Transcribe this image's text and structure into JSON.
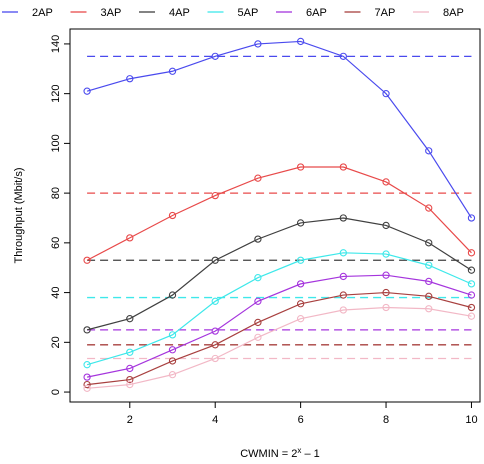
{
  "chart_data": {
    "type": "line",
    "xlabel_base": "CWMIN = 2",
    "xlabel_exp": "x",
    "xlabel_tail": " – 1",
    "ylabel": "Throughput (Mbit/s)",
    "x": [
      1,
      2,
      3,
      4,
      5,
      6,
      7,
      8,
      9,
      10
    ],
    "xlim": [
      0.6,
      10.2
    ],
    "ylim": [
      -4,
      146
    ],
    "x_ticks": [
      2,
      4,
      6,
      8,
      10
    ],
    "y_ticks": [
      0,
      20,
      40,
      60,
      80,
      100,
      120,
      140
    ],
    "grid": false,
    "legend_position": "top",
    "series": [
      {
        "name": "2AP",
        "color": "#4a4aee",
        "values": [
          121,
          126,
          129,
          135,
          140,
          141,
          135,
          120,
          97,
          70
        ],
        "reference": 135
      },
      {
        "name": "3AP",
        "color": "#e84a4a",
        "values": [
          53,
          62,
          71,
          79,
          86,
          90.5,
          90.5,
          84.5,
          74,
          56
        ],
        "reference": 80
      },
      {
        "name": "4AP",
        "color": "#404040",
        "values": [
          25,
          29.5,
          39,
          53,
          61.5,
          68,
          70,
          67,
          60,
          49
        ],
        "reference": 53
      },
      {
        "name": "5AP",
        "color": "#3ee8ea",
        "values": [
          11,
          16,
          23,
          36.5,
          46,
          53,
          56,
          55.5,
          51,
          43.5
        ],
        "reference": 38
      },
      {
        "name": "6AP",
        "color": "#a535dd",
        "values": [
          6,
          9.5,
          17,
          24.5,
          36.5,
          43.5,
          46.5,
          47,
          44.5,
          39
        ],
        "reference": 25
      },
      {
        "name": "7AP",
        "color": "#a8403f",
        "values": [
          3,
          5,
          12.5,
          19,
          28,
          35.5,
          39,
          40,
          38.5,
          34
        ],
        "reference": 19
      },
      {
        "name": "8AP",
        "color": "#f2b8c6",
        "values": [
          1.5,
          3,
          7,
          13.5,
          22,
          29.5,
          33,
          34,
          33.5,
          30.5
        ],
        "reference": 13.5
      }
    ]
  }
}
